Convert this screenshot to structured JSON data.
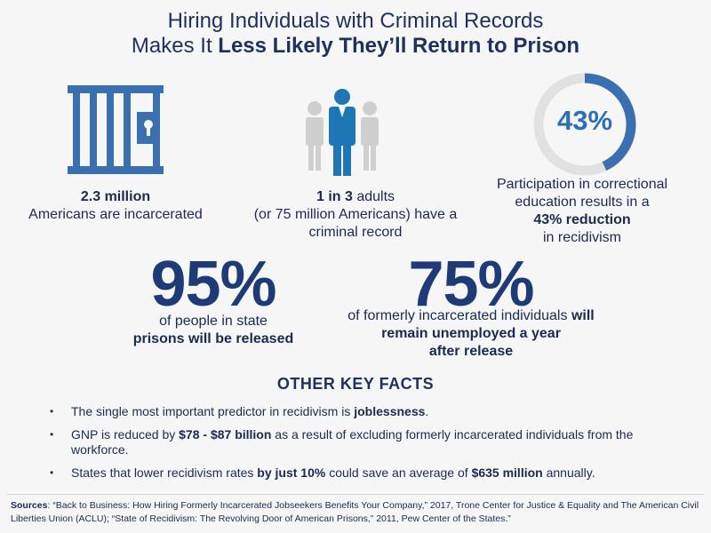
{
  "title": {
    "line1": "Hiring Individuals with Criminal Records",
    "line2_prefix": "Makes It ",
    "line2_bold": "Less Likely They’ll Return to Prison"
  },
  "colors": {
    "navy": "#1f3b77",
    "accent_blue": "#2e6fb2",
    "person_blue": "#1f76b5",
    "grey": "#cfcfcf"
  },
  "stats": {
    "incarcerated": {
      "icon": "jail-cell-icon",
      "bold": "2.3 million",
      "text": "Americans are incarcerated"
    },
    "record": {
      "icon": "people-icon",
      "bold": "1 in 3",
      "text1": " adults",
      "text2": "(or 75 million Americans) have a",
      "text3": "criminal record"
    },
    "education": {
      "icon": "ring-chart-icon",
      "percent_label": "43%",
      "percent_value": 43,
      "line1": "Participation in correctional",
      "line2": "education results in a",
      "bold": "43% reduction",
      "line4": "in recidivism"
    }
  },
  "big_stats": {
    "released": {
      "value": "95%",
      "line1": "of people in state",
      "bold": "prisons will be released"
    },
    "unemployed": {
      "value": "75%",
      "line1_prefix": "of formerly incarcerated individuals ",
      "line1_bold": "will",
      "bold2": "remain unemployed a year",
      "bold3": "after release"
    }
  },
  "other": {
    "heading": "OTHER KEY FACTS",
    "bullet": "•",
    "facts": [
      {
        "a": "The single most important predictor in recidivism is ",
        "b": "joblessness",
        "c": "."
      },
      {
        "a": "GNP is reduced by ",
        "b": "$78 - $87 billion",
        "c": " as a result of excluding formerly incarcerated individuals from the workforce."
      },
      {
        "a": "States that lower recidivism rates ",
        "b": "by just 10%",
        "c": " could save an average of ",
        "d": "$635 million",
        "e": " annually."
      }
    ]
  },
  "sources": {
    "label": "Sources",
    "text": ": “Back to Business: How Hiring Formerly Incarcerated Jobseekers Benefits Your Company,” 2017, Trone Center for Justice & Equality and The American Civil Liberties Union (ACLU); “State of Recidivism: The Revolving Door of American Prisons,” 2011, Pew Center of the States.”"
  }
}
